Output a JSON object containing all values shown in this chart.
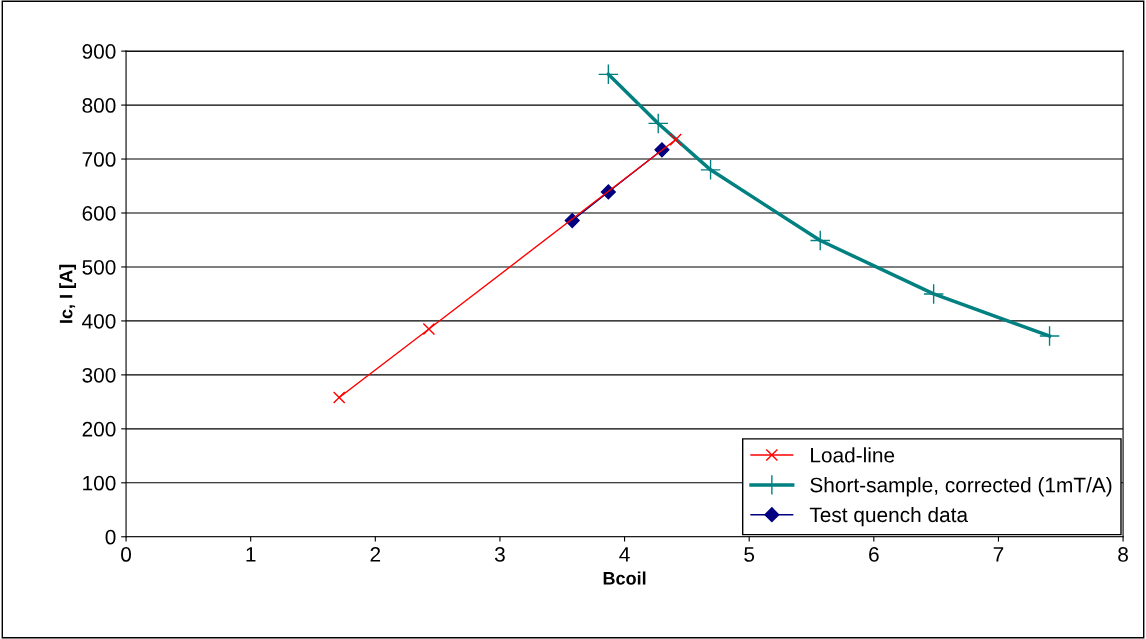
{
  "chart_data": {
    "type": "line",
    "xlabel": "Bcoil",
    "ylabel": "Ic, I [A]",
    "xlim": [
      0,
      8
    ],
    "xticks": [
      0,
      1,
      2,
      3,
      4,
      5,
      6,
      7,
      8
    ],
    "ylim": [
      0,
      900
    ],
    "yticks": [
      0,
      100,
      200,
      300,
      400,
      500,
      600,
      700,
      800,
      900
    ],
    "grid": "y",
    "legend": "bottom right",
    "series": [
      {
        "name": "Load-line",
        "color": "#ff0000",
        "marker": "cross",
        "x": [
          1.71,
          2.43,
          4.41
        ],
        "values": [
          258,
          385,
          736
        ]
      },
      {
        "name": "Short-sample, corrected (1mT/A)",
        "color": "#008080",
        "marker": "plus",
        "x": [
          3.87,
          4.27,
          4.69,
          5.57,
          6.48,
          7.41
        ],
        "values": [
          857,
          766,
          680,
          549,
          450,
          372
        ]
      },
      {
        "name": "Test quench data",
        "color": "#000080",
        "marker": "diamond",
        "x": [
          3.58,
          3.87,
          4.3
        ],
        "values": [
          586,
          639,
          717
        ]
      }
    ]
  }
}
